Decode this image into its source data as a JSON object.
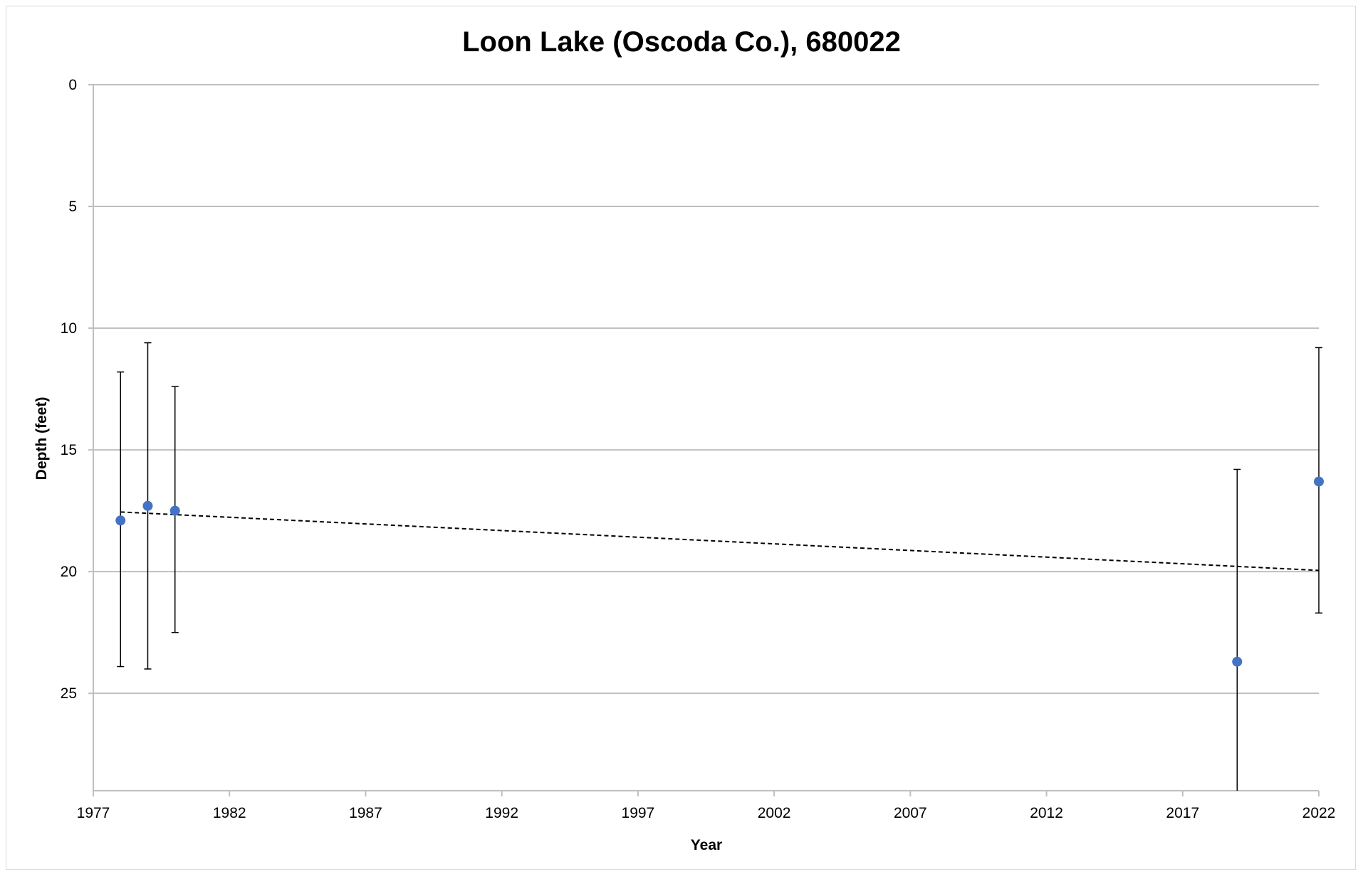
{
  "chart_data": {
    "type": "scatter",
    "title": "Loon Lake (Oscoda Co.), 680022",
    "xlabel": "Year",
    "ylabel": "Depth (feet)",
    "xlim": [
      1977,
      2022
    ],
    "ylim": [
      0,
      29
    ],
    "y_inverted": true,
    "x_ticks": [
      1977,
      1982,
      1987,
      1992,
      1997,
      2002,
      2007,
      2012,
      2017,
      2022
    ],
    "y_ticks": [
      0,
      5,
      10,
      15,
      20,
      25
    ],
    "grid": "horizontal",
    "legend": "none",
    "series": [
      {
        "x": [
          1978,
          1979,
          1980,
          2019,
          2022
        ],
        "values": [
          17.9,
          17.3,
          17.5,
          23.7,
          16.3
        ],
        "error_low": [
          11.8,
          10.6,
          12.4,
          15.8,
          10.8
        ],
        "error_high": [
          23.9,
          24.0,
          22.5,
          29.0,
          21.7
        ],
        "color": "#4472c4"
      }
    ],
    "trendline": {
      "x": [
        1978,
        2022
      ],
      "y": [
        17.55,
        19.95
      ],
      "style": "dashed",
      "color": "#000000"
    }
  }
}
